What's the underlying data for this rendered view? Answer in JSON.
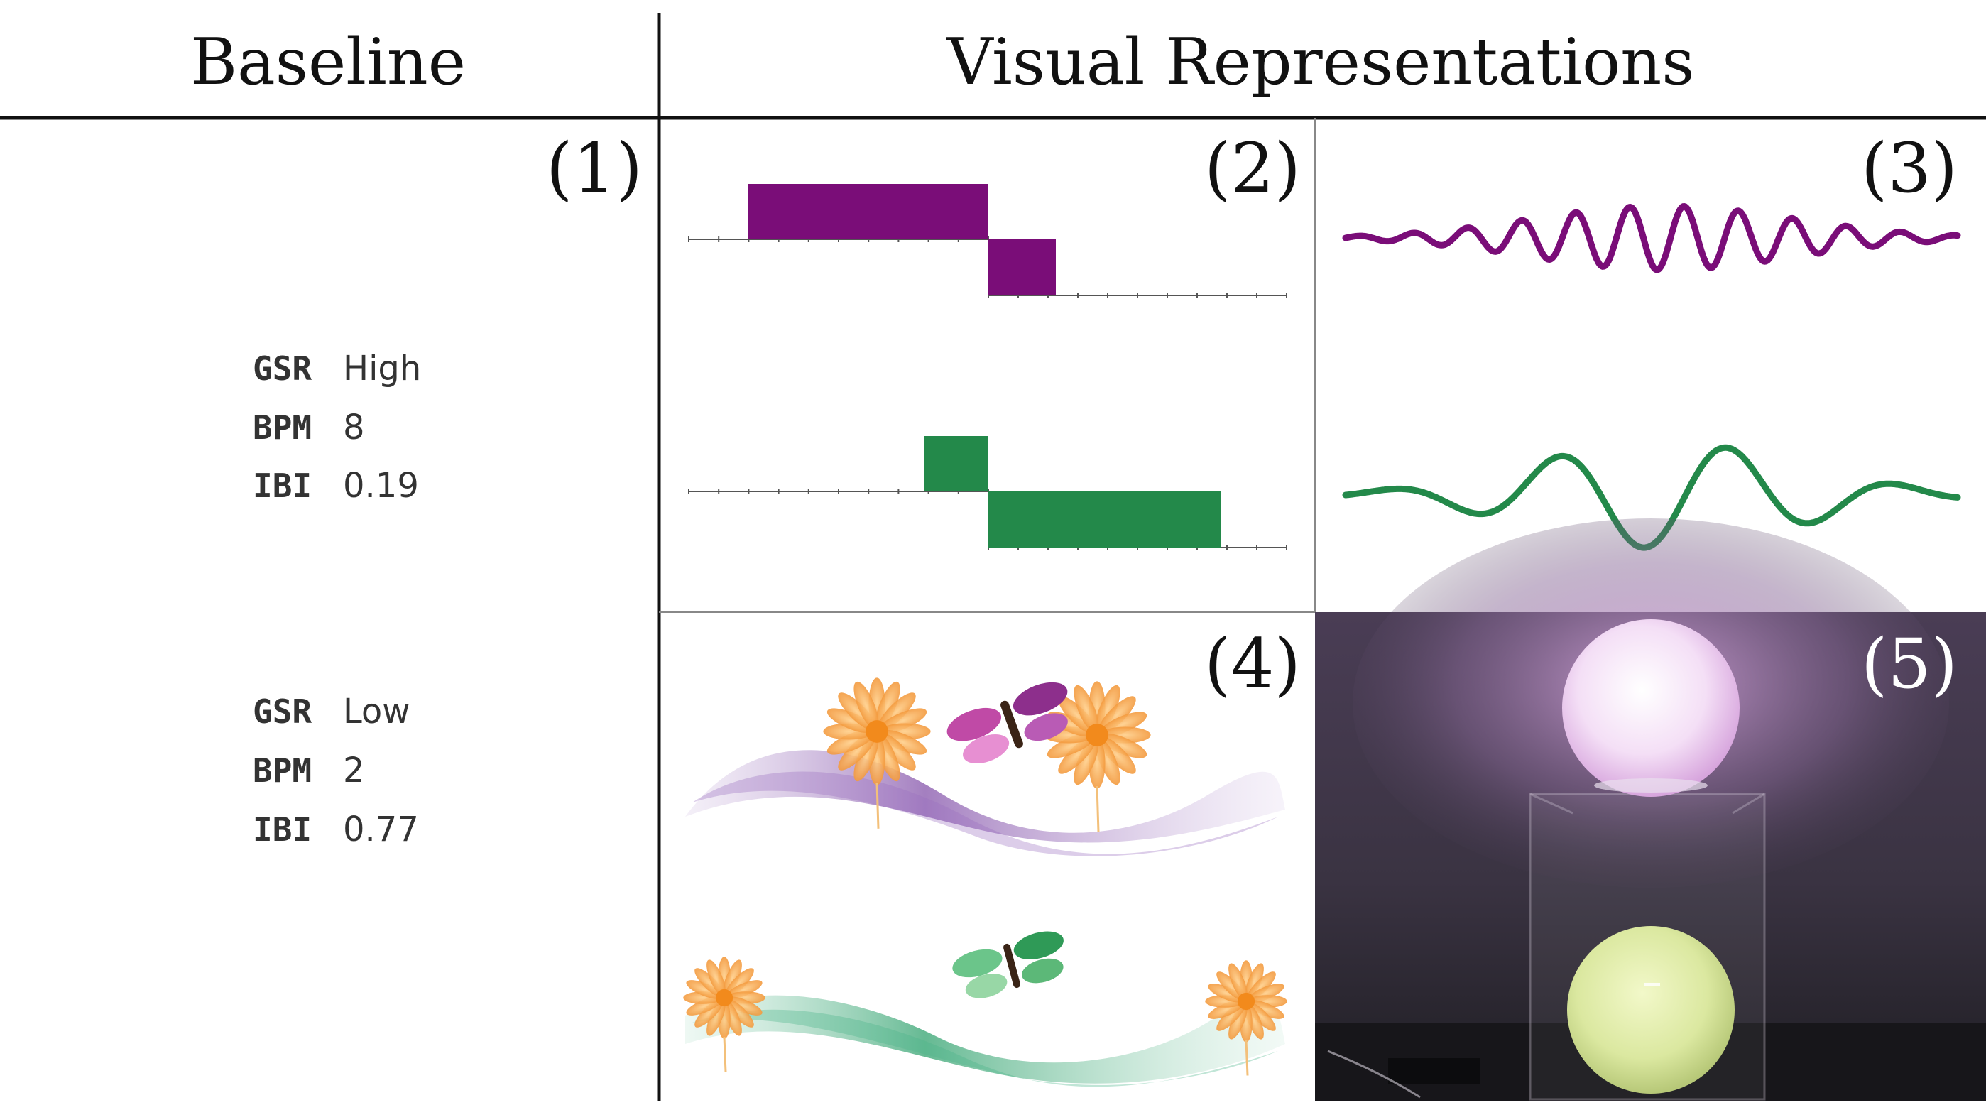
{
  "header": {
    "baseline_title": "Baseline",
    "visual_title": "Visual Representations"
  },
  "panels": {
    "p1": "(1)",
    "p2": "(2)",
    "p3": "(3)",
    "p4": "(4)",
    "p5": "(5)"
  },
  "baseline": {
    "high": {
      "rows": [
        {
          "key": "GSR",
          "value": "High"
        },
        {
          "key": "BPM",
          "value": "8"
        },
        {
          "key": "IBI",
          "value": "0.19"
        }
      ]
    },
    "low": {
      "rows": [
        {
          "key": "GSR",
          "value": "Low"
        },
        {
          "key": "BPM",
          "value": "2"
        },
        {
          "key": "IBI",
          "value": "0.77"
        }
      ]
    }
  },
  "colors": {
    "high": "#7a0d78",
    "low": "#23894a",
    "lamp_top": "#f0d9f2",
    "lamp_bottom": "#dde9a2",
    "photo_bg": "#3b3344"
  },
  "icons": [
    "flower-icon",
    "butterfly-icon",
    "wave-ribbon",
    "sphere-lamp"
  ]
}
